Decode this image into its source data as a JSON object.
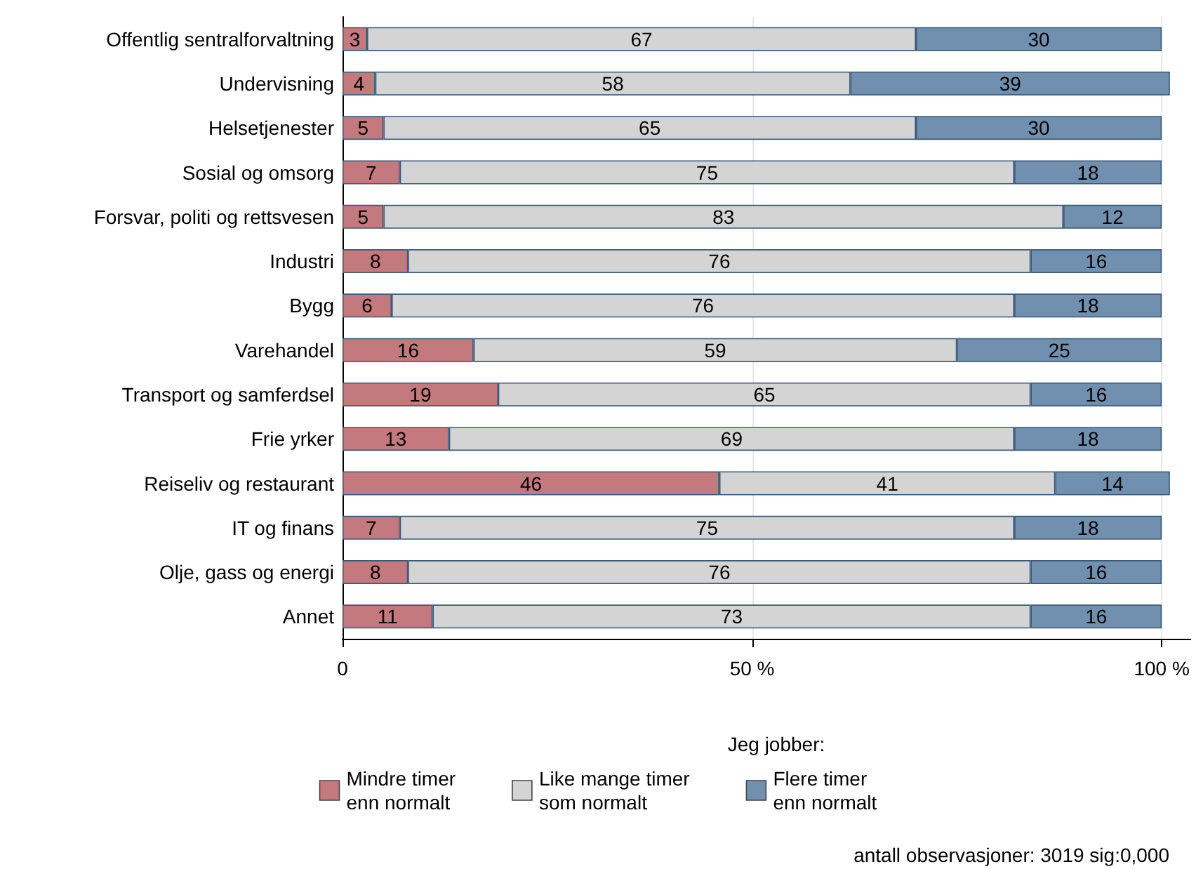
{
  "chart_data": {
    "type": "bar",
    "orientation": "horizontal",
    "stacked": true,
    "data_labels": true,
    "categories": [
      "Offentlig sentralforvaltning",
      "Undervisning",
      "Helsetjenester",
      "Sosial og omsorg",
      "Forsvar, politi og rettsvesen",
      "Industri",
      "Bygg",
      "Varehandel",
      "Transport og samferdsel",
      "Frie yrker",
      "Reiseliv og restaurant",
      "IT og finans",
      "Olje, gass og energi",
      "Annet"
    ],
    "series": [
      {
        "name": "Mindre timer\nenn normalt",
        "color": "#c4797f",
        "values": [
          3,
          4,
          5,
          7,
          5,
          8,
          6,
          16,
          19,
          13,
          46,
          7,
          8,
          11
        ]
      },
      {
        "name": "Like mange timer\nsom normalt",
        "color": "#d4d4d4",
        "values": [
          67,
          58,
          65,
          75,
          83,
          76,
          76,
          59,
          65,
          69,
          41,
          75,
          76,
          73
        ]
      },
      {
        "name": "Flere timer\nenn normalt",
        "color": "#7190b0",
        "values": [
          30,
          39,
          30,
          18,
          12,
          16,
          18,
          25,
          16,
          18,
          14,
          18,
          16,
          16
        ]
      }
    ],
    "xlim": [
      0,
      103.5
    ],
    "xticks": [
      0,
      {
        "value": 50,
        "label": "50 %"
      },
      {
        "value": 100,
        "label": "100 %"
      }
    ],
    "grid": "x",
    "legend": "bottom",
    "legend_title": "Jeg jobber:",
    "annotations": [
      "antall observasjoner: 3019 sig:0,000"
    ]
  }
}
